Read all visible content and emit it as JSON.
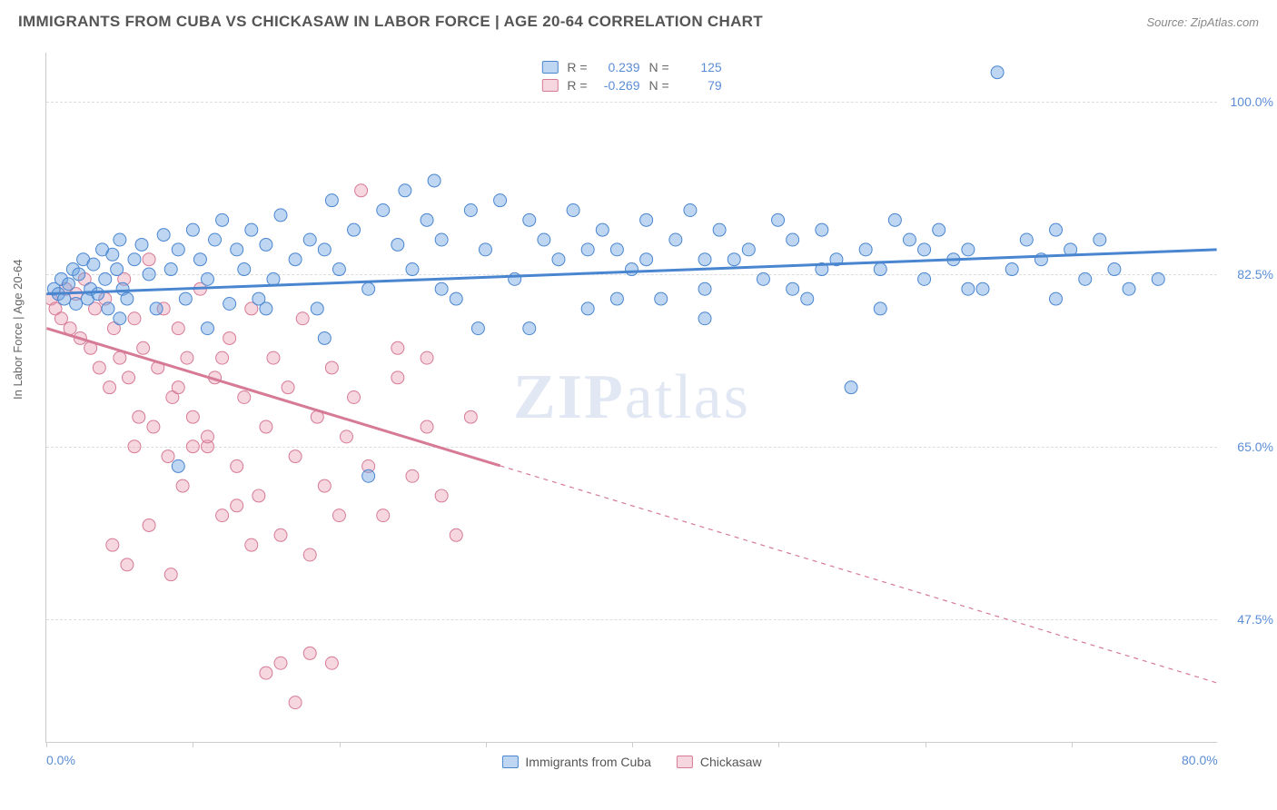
{
  "title": "IMMIGRANTS FROM CUBA VS CHICKASAW IN LABOR FORCE | AGE 20-64 CORRELATION CHART",
  "source": "Source: ZipAtlas.com",
  "ylabel": "In Labor Force | Age 20-64",
  "watermark_bold": "ZIP",
  "watermark_light": "atlas",
  "chart": {
    "type": "scatter-with-trend",
    "background": "#ffffff",
    "grid_color": "#dddddd",
    "axis_color": "#cccccc",
    "tick_color": "#5b8dd6",
    "x_range": [
      0,
      80
    ],
    "y_range": [
      35,
      105
    ],
    "y_ticks": [
      47.5,
      65.0,
      82.5,
      100.0
    ],
    "y_tick_labels": [
      "47.5%",
      "65.0%",
      "82.5%",
      "100.0%"
    ],
    "x_tick_marks": [
      0,
      10,
      20,
      30,
      40,
      50,
      60,
      70
    ],
    "x_labels": [
      {
        "v": 0,
        "t": "0.0%"
      },
      {
        "v": 80,
        "t": "80.0%"
      }
    ],
    "marker_radius": 7,
    "marker_opacity": 0.55,
    "trend_width": 3
  },
  "series": [
    {
      "key": "cuba",
      "label": "Immigrants from Cuba",
      "color": "#6fa5e0",
      "fill": "rgba(111,165,224,0.45)",
      "stroke": "#4a86d0",
      "r": 0.239,
      "n": 125,
      "trend": {
        "x1": 0,
        "y1": 80.5,
        "x2": 80,
        "y2": 85.0,
        "solid_until": 80
      },
      "points": [
        [
          0.5,
          81
        ],
        [
          0.8,
          80.5
        ],
        [
          1,
          82
        ],
        [
          1.2,
          80
        ],
        [
          1.5,
          81.5
        ],
        [
          1.8,
          83
        ],
        [
          2,
          79.5
        ],
        [
          2.2,
          82.5
        ],
        [
          2.5,
          84
        ],
        [
          2.8,
          80
        ],
        [
          3,
          81
        ],
        [
          3.2,
          83.5
        ],
        [
          3.5,
          80.5
        ],
        [
          3.8,
          85
        ],
        [
          4,
          82
        ],
        [
          4.2,
          79
        ],
        [
          4.5,
          84.5
        ],
        [
          4.8,
          83
        ],
        [
          5,
          86
        ],
        [
          5.2,
          81
        ],
        [
          5.5,
          80
        ],
        [
          6,
          84
        ],
        [
          6.5,
          85.5
        ],
        [
          7,
          82.5
        ],
        [
          7.5,
          79
        ],
        [
          8,
          86.5
        ],
        [
          8.5,
          83
        ],
        [
          9,
          85
        ],
        [
          9.5,
          80
        ],
        [
          10,
          87
        ],
        [
          10.5,
          84
        ],
        [
          11,
          82
        ],
        [
          11.5,
          86
        ],
        [
          12,
          88
        ],
        [
          12.5,
          79.5
        ],
        [
          13,
          85
        ],
        [
          13.5,
          83
        ],
        [
          14,
          87
        ],
        [
          14.5,
          80
        ],
        [
          15,
          85.5
        ],
        [
          15.5,
          82
        ],
        [
          16,
          88.5
        ],
        [
          17,
          84
        ],
        [
          18,
          86
        ],
        [
          18.5,
          79
        ],
        [
          19,
          85
        ],
        [
          19.5,
          90
        ],
        [
          20,
          83
        ],
        [
          21,
          87
        ],
        [
          22,
          81
        ],
        [
          23,
          89
        ],
        [
          24,
          85.5
        ],
        [
          24.5,
          91
        ],
        [
          25,
          83
        ],
        [
          26,
          88
        ],
        [
          26.5,
          92
        ],
        [
          27,
          86
        ],
        [
          28,
          80
        ],
        [
          29,
          89
        ],
        [
          29.5,
          77
        ],
        [
          30,
          85
        ],
        [
          31,
          90
        ],
        [
          32,
          82
        ],
        [
          33,
          88
        ],
        [
          34,
          86
        ],
        [
          35,
          84
        ],
        [
          36,
          89
        ],
        [
          37,
          79
        ],
        [
          38,
          87
        ],
        [
          39,
          85
        ],
        [
          40,
          83
        ],
        [
          41,
          88
        ],
        [
          42,
          80
        ],
        [
          43,
          86
        ],
        [
          44,
          89
        ],
        [
          45,
          81
        ],
        [
          46,
          87
        ],
        [
          47,
          84
        ],
        [
          48,
          85
        ],
        [
          49,
          82
        ],
        [
          50,
          88
        ],
        [
          51,
          86
        ],
        [
          52,
          80
        ],
        [
          53,
          87
        ],
        [
          54,
          84
        ],
        [
          55,
          71
        ],
        [
          56,
          85
        ],
        [
          57,
          83
        ],
        [
          58,
          88
        ],
        [
          59,
          86
        ],
        [
          60,
          82
        ],
        [
          61,
          87
        ],
        [
          62,
          84
        ],
        [
          63,
          85
        ],
        [
          64,
          81
        ],
        [
          65,
          103
        ],
        [
          66,
          83
        ],
        [
          67,
          86
        ],
        [
          68,
          84
        ],
        [
          69,
          87
        ],
        [
          70,
          85
        ],
        [
          71,
          82
        ],
        [
          72,
          86
        ],
        [
          73,
          83
        ],
        [
          9,
          63
        ],
        [
          22,
          62
        ],
        [
          15,
          79
        ],
        [
          33,
          77
        ],
        [
          45,
          78
        ],
        [
          5,
          78
        ],
        [
          11,
          77
        ],
        [
          19,
          76
        ],
        [
          27,
          81
        ],
        [
          39,
          80
        ],
        [
          51,
          81
        ],
        [
          57,
          79
        ],
        [
          63,
          81
        ],
        [
          69,
          80
        ],
        [
          74,
          81
        ],
        [
          76,
          82
        ],
        [
          60,
          85
        ],
        [
          41,
          84
        ],
        [
          37,
          85
        ],
        [
          53,
          83
        ],
        [
          45,
          84
        ]
      ]
    },
    {
      "key": "chickasaw",
      "label": "Chickasaw",
      "color": "#e89cb1",
      "fill": "rgba(232,156,177,0.40)",
      "stroke": "#d67a95",
      "r": -0.269,
      "n": 79,
      "trend": {
        "x1": 0,
        "y1": 77.0,
        "x2": 80,
        "y2": 41.0,
        "solid_until": 31
      },
      "points": [
        [
          0.3,
          80
        ],
        [
          0.6,
          79
        ],
        [
          1,
          78
        ],
        [
          1.3,
          81
        ],
        [
          1.6,
          77
        ],
        [
          2,
          80.5
        ],
        [
          2.3,
          76
        ],
        [
          2.6,
          82
        ],
        [
          3,
          75
        ],
        [
          3.3,
          79
        ],
        [
          3.6,
          73
        ],
        [
          4,
          80
        ],
        [
          4.3,
          71
        ],
        [
          4.6,
          77
        ],
        [
          5,
          74
        ],
        [
          5.3,
          82
        ],
        [
          5.6,
          72
        ],
        [
          6,
          78
        ],
        [
          6.3,
          68
        ],
        [
          6.6,
          75
        ],
        [
          7,
          84
        ],
        [
          7.3,
          67
        ],
        [
          7.6,
          73
        ],
        [
          8,
          79
        ],
        [
          8.3,
          64
        ],
        [
          8.6,
          70
        ],
        [
          9,
          77
        ],
        [
          9.3,
          61
        ],
        [
          9.6,
          74
        ],
        [
          10,
          68
        ],
        [
          10.5,
          81
        ],
        [
          11,
          65
        ],
        [
          11.5,
          72
        ],
        [
          12,
          58
        ],
        [
          12.5,
          76
        ],
        [
          13,
          63
        ],
        [
          13.5,
          70
        ],
        [
          14,
          79
        ],
        [
          14.5,
          60
        ],
        [
          15,
          67
        ],
        [
          15.5,
          74
        ],
        [
          16,
          56
        ],
        [
          16.5,
          71
        ],
        [
          17,
          64
        ],
        [
          17.5,
          78
        ],
        [
          18,
          54
        ],
        [
          18.5,
          68
        ],
        [
          19,
          61
        ],
        [
          19.5,
          73
        ],
        [
          20,
          58
        ],
        [
          20.5,
          66
        ],
        [
          21,
          70
        ],
        [
          22,
          63
        ],
        [
          23,
          58
        ],
        [
          24,
          72
        ],
        [
          25,
          62
        ],
        [
          26,
          67
        ],
        [
          27,
          60
        ],
        [
          28,
          56
        ],
        [
          29,
          68
        ],
        [
          4.5,
          55
        ],
        [
          5.5,
          53
        ],
        [
          7,
          57
        ],
        [
          8.5,
          52
        ],
        [
          10,
          65
        ],
        [
          12,
          74
        ],
        [
          14,
          55
        ],
        [
          15,
          42
        ],
        [
          16,
          43
        ],
        [
          17,
          39
        ],
        [
          18,
          44
        ],
        [
          19.5,
          43
        ],
        [
          21.5,
          91
        ],
        [
          6,
          65
        ],
        [
          9,
          71
        ],
        [
          11,
          66
        ],
        [
          13,
          59
        ],
        [
          24,
          75
        ],
        [
          26,
          74
        ]
      ]
    }
  ],
  "legend_top": {
    "r_label": "R =",
    "n_label": "N ="
  }
}
